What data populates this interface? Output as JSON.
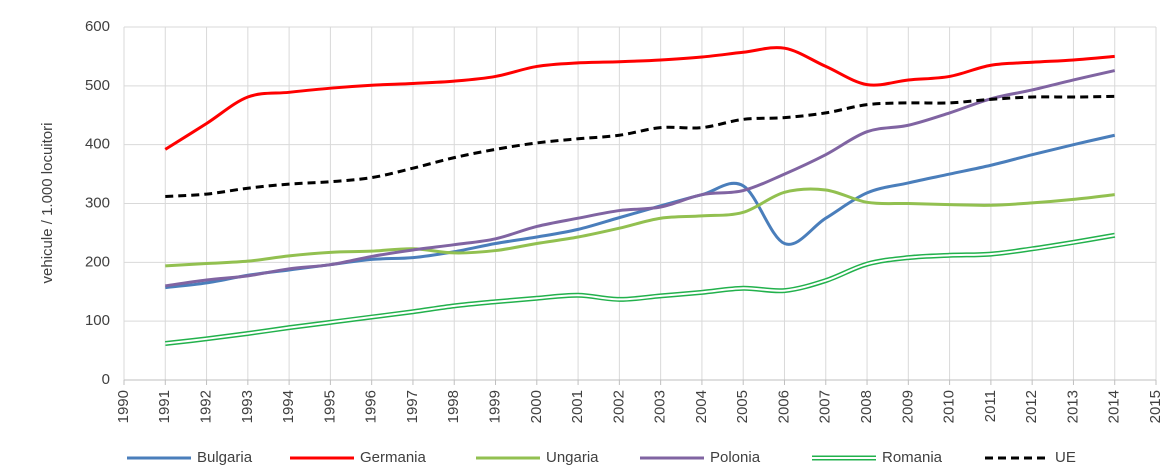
{
  "chart_data": {
    "type": "line",
    "y_label": "vehicule / 1.000 locuitori",
    "x": [
      1991,
      1992,
      1993,
      1994,
      1995,
      1996,
      1997,
      1998,
      1999,
      2000,
      2001,
      2002,
      2003,
      2004,
      2005,
      2006,
      2007,
      2008,
      2009,
      2010,
      2011,
      2012,
      2013,
      2014
    ],
    "xlim": [
      1990,
      2015
    ],
    "xticks": [
      1990,
      1991,
      1992,
      1993,
      1994,
      1995,
      1996,
      1997,
      1998,
      1999,
      2000,
      2001,
      2002,
      2003,
      2004,
      2005,
      2006,
      2007,
      2008,
      2009,
      2010,
      2011,
      2012,
      2013,
      2014,
      2015
    ],
    "ylim": [
      0,
      600
    ],
    "yticks": [
      0,
      100,
      200,
      300,
      400,
      500,
      600
    ],
    "grid": true,
    "legend": "bottom",
    "series": [
      {
        "name": "Bulgaria",
        "color": "#4a7ebb",
        "style": "solid",
        "values": [
          157,
          165,
          178,
          187,
          196,
          205,
          208,
          218,
          232,
          243,
          256,
          276,
          296,
          315,
          330,
          232,
          275,
          318,
          335,
          350,
          365,
          383,
          400,
          416
        ]
      },
      {
        "name": "Germania",
        "color": "#ff0000",
        "style": "solid",
        "values": [
          392,
          436,
          481,
          489,
          496,
          501,
          504,
          508,
          516,
          533,
          539,
          541,
          544,
          549,
          557,
          564,
          533,
          502,
          510,
          516,
          535,
          540,
          544,
          550
        ]
      },
      {
        "name": "Ungaria",
        "color": "#92c050",
        "style": "solid",
        "values": [
          194,
          198,
          202,
          211,
          217,
          219,
          223,
          216,
          220,
          232,
          243,
          258,
          275,
          279,
          285,
          319,
          323,
          302,
          300,
          298,
          297,
          301,
          307,
          315
        ]
      },
      {
        "name": "Polonia",
        "color": "#8064a2",
        "style": "solid",
        "values": [
          160,
          170,
          177,
          189,
          196,
          210,
          221,
          230,
          240,
          261,
          275,
          288,
          294,
          315,
          322,
          350,
          383,
          422,
          433,
          454,
          478,
          493,
          510,
          526
        ]
      },
      {
        "name": "Romania",
        "color": "#22b14c",
        "style": "double",
        "values": [
          62,
          70,
          79,
          89,
          98,
          107,
          116,
          126,
          133,
          139,
          144,
          137,
          143,
          149,
          156,
          152,
          169,
          197,
          208,
          212,
          214,
          223,
          234,
          246
        ]
      },
      {
        "name": "UE",
        "color": "#000000",
        "style": "dashed",
        "values": [
          312,
          316,
          326,
          333,
          337,
          344,
          360,
          378,
          392,
          403,
          410,
          416,
          429,
          429,
          443,
          446,
          454,
          468,
          471,
          471,
          477,
          481,
          481,
          482
        ]
      }
    ]
  }
}
